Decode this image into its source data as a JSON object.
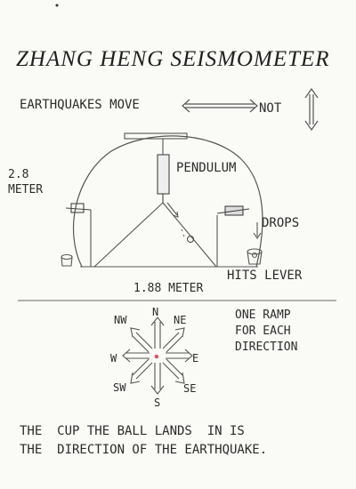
{
  "title": "ZHANG HENG SEISMOMETER",
  "intro": {
    "moves": "EARTHQUAKES MOVE",
    "not": "NOT"
  },
  "labels": {
    "height_1": "2.8",
    "height_2": "METER",
    "pendulum": "PENDULUM",
    "drops": "DROPS",
    "hits_lever": "HITS LEVER",
    "base": "1.88 METER"
  },
  "ramp_note": [
    "ONE RAMP",
    "FOR EACH",
    "DIRECTION"
  ],
  "compass": {
    "n": "N",
    "ne": "NE",
    "e": "E",
    "se": "SE",
    "s": "S",
    "sw": "SW",
    "w": "W",
    "nw": "NW"
  },
  "caption": [
    "THE  CUP THE BALL LANDS  IN IS",
    "THE  DIRECTION OF THE EARTHQUAKE."
  ],
  "colors": {
    "ink": "#2b2b2b",
    "ball": "#e05050"
  }
}
